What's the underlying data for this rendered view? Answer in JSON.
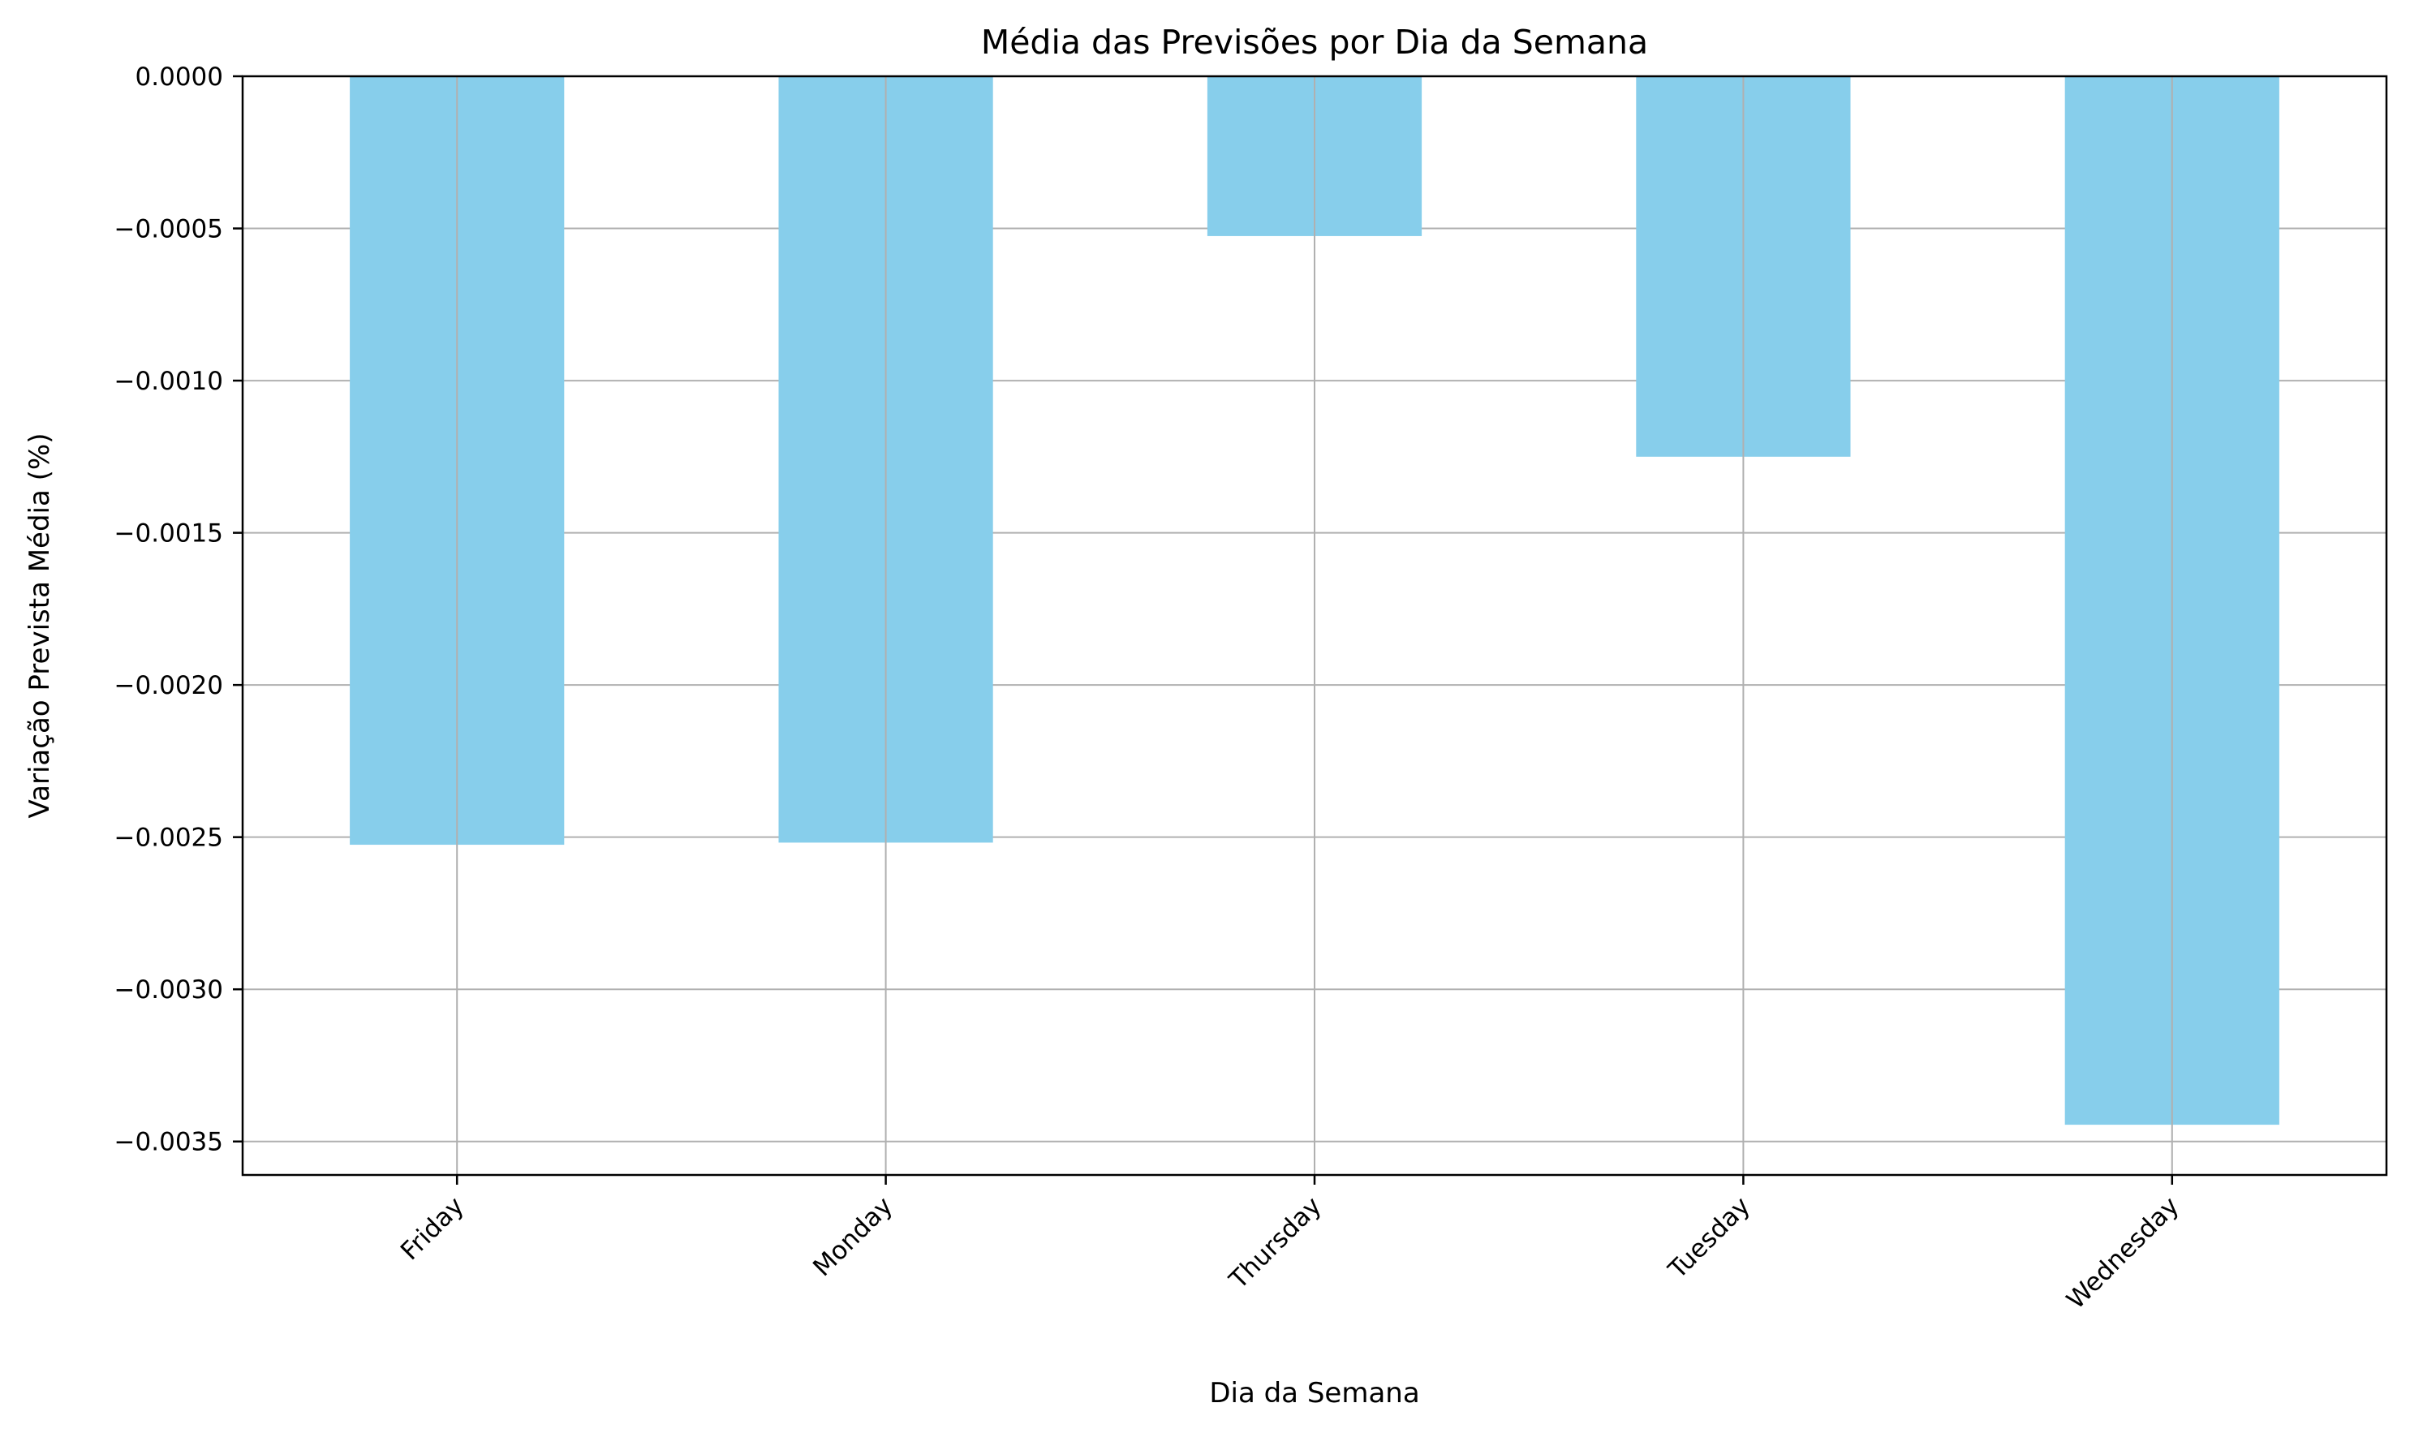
{
  "chart_data": {
    "type": "bar",
    "title": "Média das Previsões por Dia da Semana",
    "xlabel": "Dia da Semana",
    "ylabel": "Variação Prevista Média (%)",
    "categories": [
      "Friday",
      "Monday",
      "Thursday",
      "Tuesday",
      "Wednesday"
    ],
    "values": [
      -0.002525,
      -0.002518,
      -0.000525,
      -0.00125,
      -0.003445
    ],
    "ylim": [
      -0.00361,
      0.0
    ],
    "yticks": [
      0.0,
      -0.0005,
      -0.001,
      -0.0015,
      -0.002,
      -0.0025,
      -0.003,
      -0.0035
    ],
    "ytick_labels": [
      "0.0000",
      "−0.0005",
      "−0.0010",
      "−0.0015",
      "−0.0020",
      "−0.0025",
      "−0.0030",
      "−0.0035"
    ],
    "grid": true,
    "bar_color": "#87ceeb",
    "grid_color": "#b0b0b0"
  }
}
